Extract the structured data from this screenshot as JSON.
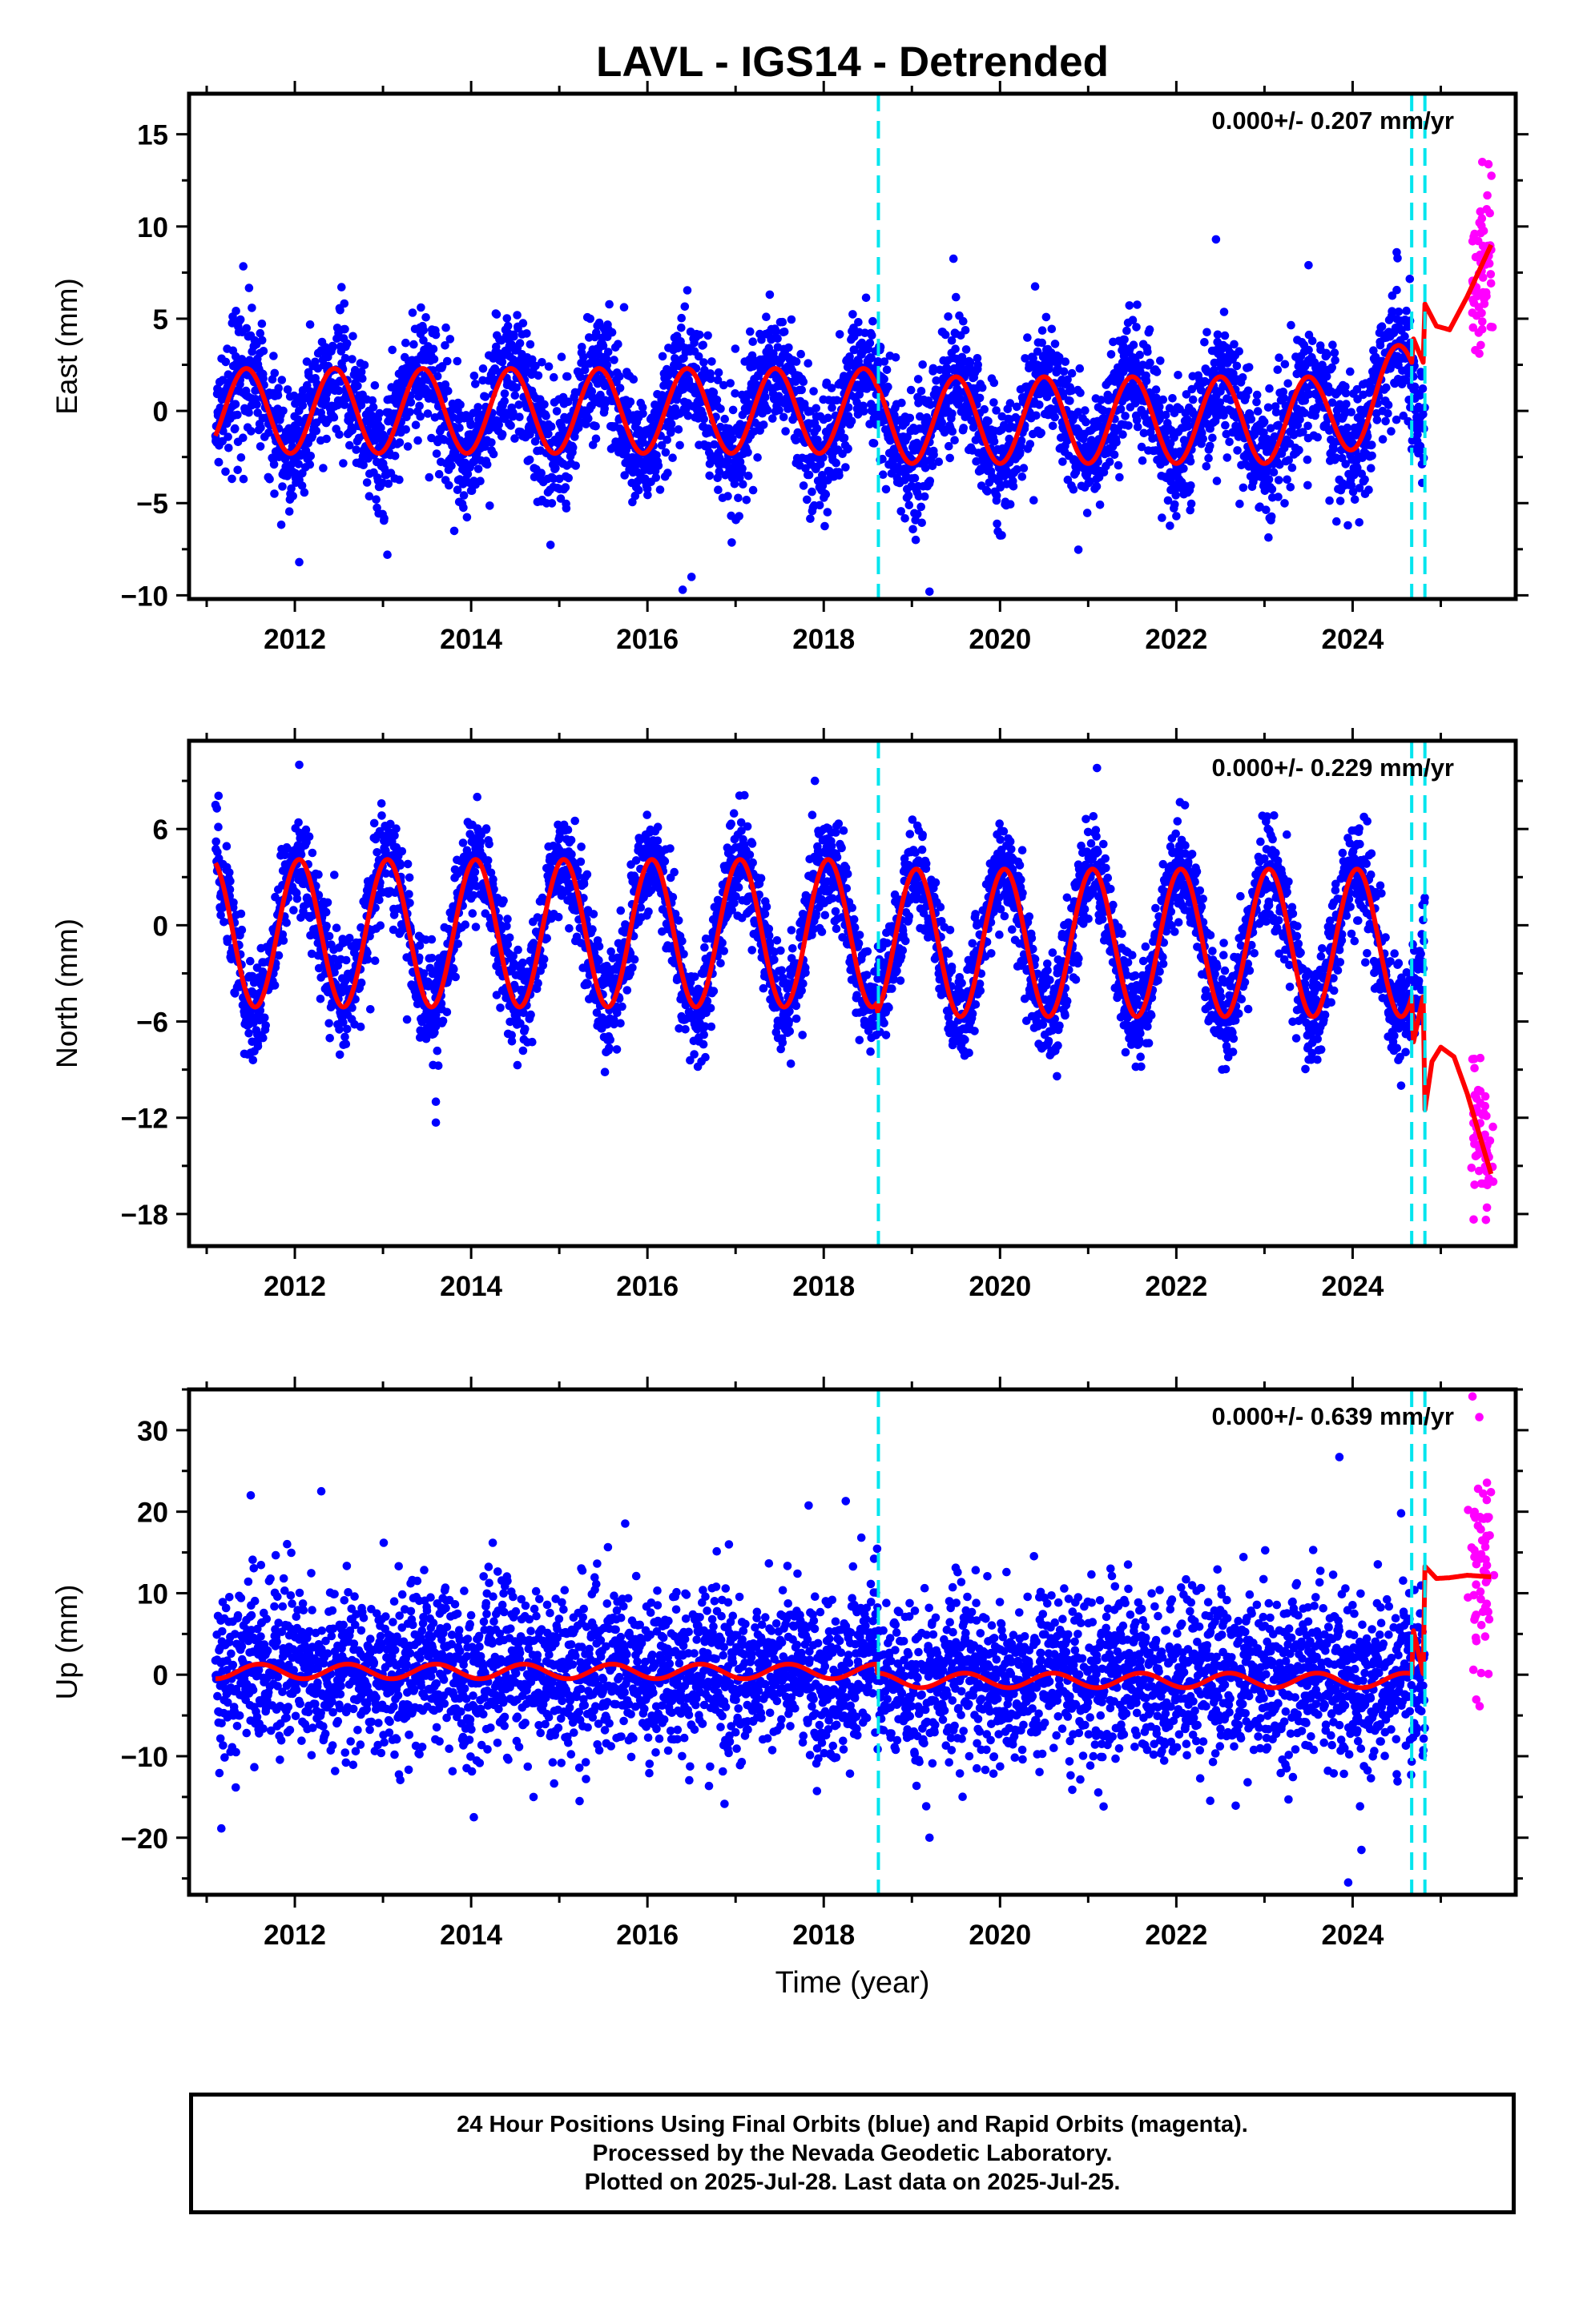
{
  "title": "LAVL - IGS14 - Detrended",
  "xlabel": "Time (year)",
  "colors": {
    "final": "#0000ff",
    "rapid": "#ff00ff",
    "model": "#ff0000",
    "event": "#00e5ee",
    "axis": "#000000"
  },
  "chart_data": [
    {
      "type": "scatter",
      "component": "East",
      "ylabel": "East (mm)",
      "annotation": "0.000+/- 0.207 mm/yr",
      "xlim": [
        2010.8,
        2025.85
      ],
      "ylim": [
        -10.2,
        17.2
      ],
      "yticks": [
        -10,
        -5,
        0,
        5,
        10,
        15
      ],
      "xticks": [
        2012,
        2014,
        2016,
        2018,
        2020,
        2022,
        2024
      ],
      "events": [
        2018.62,
        2024.67,
        2024.82
      ],
      "seasonal": [
        {
          "start": 2011.1,
          "end": 2018.6,
          "amplitude": 2.3,
          "offset": 0.0,
          "peak_phase": 0.45
        },
        {
          "start": 2018.6,
          "end": 2024.67,
          "amplitude": 2.35,
          "offset": -0.5,
          "peak_phase": 0.5
        }
      ],
      "noise_sd": 1.7,
      "final_range": [
        2011.1,
        2024.82
      ],
      "rapid_range": [
        2025.35,
        2025.57
      ],
      "rapid_model": [
        [
          2024.82,
          5.8
        ],
        [
          2024.95,
          4.6
        ],
        [
          2025.1,
          4.4
        ],
        [
          2025.3,
          6.2
        ],
        [
          2025.57,
          9.0
        ]
      ],
      "trend_ramps": [
        [
          2023.6,
          2024.67,
          0.0,
          2.0
        ]
      ],
      "outliers": [
        [
          2012.05,
          -8.2
        ],
        [
          2013.05,
          -7.8
        ],
        [
          2016.4,
          -9.7
        ],
        [
          2016.5,
          -9.0
        ],
        [
          2019.2,
          -9.8
        ],
        [
          2022.45,
          9.3
        ],
        [
          2023.5,
          7.9
        ],
        [
          2024.5,
          8.6
        ]
      ]
    },
    {
      "type": "scatter",
      "component": "North",
      "ylabel": "North (mm)",
      "annotation": "0.000+/- 0.229 mm/yr",
      "xlim": [
        2010.8,
        2025.85
      ],
      "ylim": [
        -20,
        11.5
      ],
      "yticks": [
        -18,
        -12,
        -6,
        0,
        6
      ],
      "xticks": [
        2012,
        2014,
        2016,
        2018,
        2020,
        2022,
        2024
      ],
      "events": [
        2018.62,
        2024.67,
        2024.82
      ],
      "seasonal": [
        {
          "start": 2011.1,
          "end": 2018.6,
          "amplitude": 4.6,
          "offset": -0.5,
          "peak_phase": 0.05
        },
        {
          "start": 2018.6,
          "end": 2024.67,
          "amplitude": 4.6,
          "offset": -1.1,
          "peak_phase": 0.05
        }
      ],
      "noise_sd": 1.6,
      "final_range": [
        2011.1,
        2024.82
      ],
      "rapid_range": [
        2025.35,
        2025.57
      ],
      "rapid_model": [
        [
          2024.82,
          -11.5
        ],
        [
          2024.9,
          -8.5
        ],
        [
          2025.0,
          -7.6
        ],
        [
          2025.15,
          -8.2
        ],
        [
          2025.3,
          -10.5
        ],
        [
          2025.57,
          -15.5
        ]
      ],
      "trend_ramps": [],
      "outliers": [
        [
          2011.1,
          7.5
        ],
        [
          2012.05,
          10.0
        ],
        [
          2013.6,
          -12.3
        ],
        [
          2013.6,
          -11.0
        ],
        [
          2017.9,
          9.0
        ],
        [
          2021.1,
          9.8
        ],
        [
          2024.55,
          -10.0
        ]
      ]
    },
    {
      "type": "scatter",
      "component": "Up",
      "ylabel": "Up (mm)",
      "annotation": "0.000+/- 0.639 mm/yr",
      "xlim": [
        2010.8,
        2025.85
      ],
      "ylim": [
        -27,
        35
      ],
      "yticks": [
        -20,
        -10,
        0,
        10,
        20,
        30
      ],
      "xticks": [
        2012,
        2014,
        2016,
        2018,
        2020,
        2022,
        2024
      ],
      "events": [
        2018.62,
        2024.67,
        2024.82
      ],
      "seasonal": [
        {
          "start": 2011.1,
          "end": 2018.6,
          "amplitude": 0.9,
          "offset": 0.4,
          "peak_phase": 0.6
        },
        {
          "start": 2018.6,
          "end": 2024.67,
          "amplitude": 0.9,
          "offset": -0.7,
          "peak_phase": 0.6
        }
      ],
      "noise_sd": 5.2,
      "final_range": [
        2011.1,
        2024.82
      ],
      "rapid_range": [
        2025.35,
        2025.57
      ],
      "rapid_model": [
        [
          2024.82,
          13.3
        ],
        [
          2024.95,
          11.8
        ],
        [
          2025.1,
          11.9
        ],
        [
          2025.3,
          12.2
        ],
        [
          2025.57,
          12.0
        ]
      ],
      "trend_ramps": [
        [
          2021.8,
          2023.4,
          0.0,
          0.0
        ]
      ],
      "outliers": [
        [
          2011.5,
          22.0
        ],
        [
          2012.3,
          22.5
        ],
        [
          2018.25,
          21.3
        ],
        [
          2023.85,
          26.7
        ],
        [
          2023.95,
          -25.5
        ],
        [
          2024.1,
          -21.5
        ],
        [
          2019.2,
          -20.0
        ],
        [
          2024.55,
          19.8
        ]
      ]
    }
  ],
  "footer": {
    "line1": "24 Hour Positions Using Final Orbits (blue) and Rapid Orbits (magenta).",
    "line2": "Processed by the Nevada Geodetic Laboratory.",
    "line3": "Plotted on 2025-Jul-28. Last data on 2025-Jul-25."
  }
}
